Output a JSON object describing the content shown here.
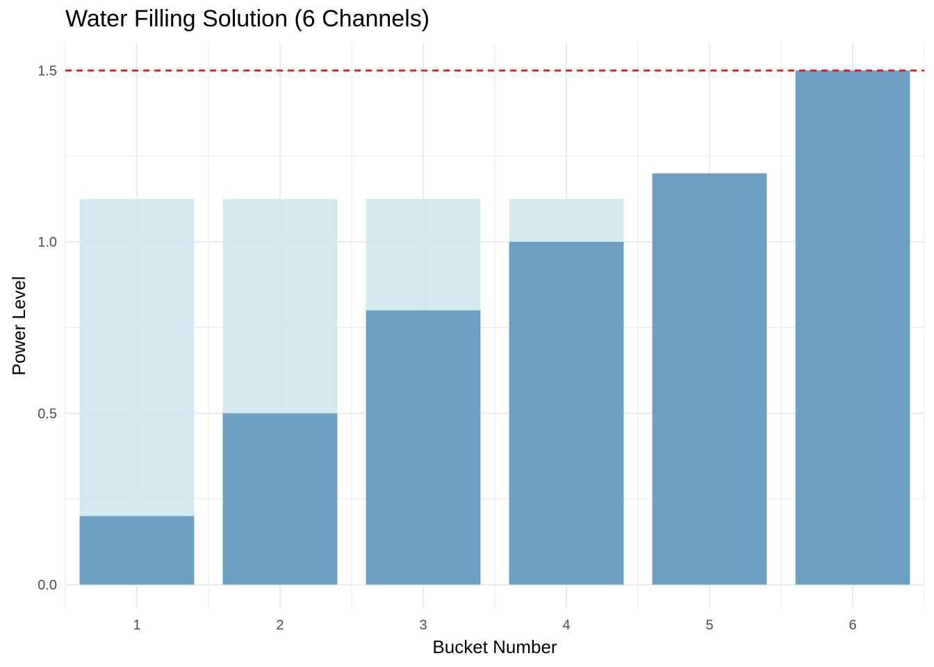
{
  "chart_data": {
    "type": "bar",
    "title": "Water Filling Solution (6 Channels)",
    "xlabel": "Bucket Number",
    "ylabel": "Power Level",
    "categories": [
      "1",
      "2",
      "3",
      "4",
      "5",
      "6"
    ],
    "series": [
      {
        "values": [
          1.125,
          1.125,
          1.125,
          1.125,
          0,
          0
        ],
        "color": "#cfe7ee"
      },
      {
        "values": [
          0.2,
          0.5,
          0.8,
          1.0,
          1.2,
          1.5
        ],
        "color": "#6d9fc3"
      }
    ],
    "reference_line": {
      "y": 1.5,
      "color": "#ff0000",
      "style": "dashed"
    },
    "ylim": [
      -0.07,
      1.58
    ],
    "yticks": [
      0.0,
      0.5,
      1.0,
      1.5
    ],
    "ytick_labels": [
      "0.0",
      "0.5",
      "1.0",
      "1.5"
    ],
    "grid": true,
    "grid_color": "#ebebeb"
  }
}
